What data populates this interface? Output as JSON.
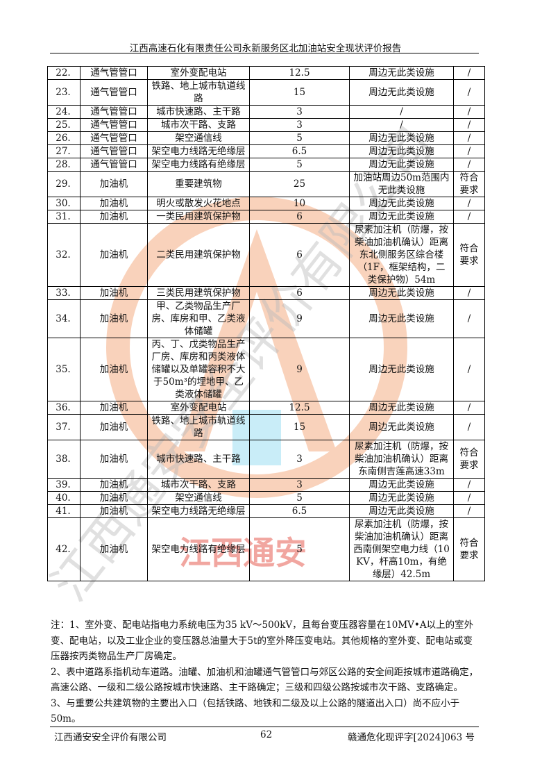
{
  "header": {
    "title": "江西高速石化有限责任公司永新服务区北加油站安全现状评价报告"
  },
  "watermark": {
    "text": "江西通安安全评价有限公司",
    "emphasis": "江西通安",
    "logo_letter": "A",
    "colors": {
      "ring": "#f4a77a",
      "red": "#e23b2e",
      "blue": "#4fc3e8"
    }
  },
  "table": {
    "rows": [
      {
        "no": "22.",
        "source": "通气管管口",
        "object": "室外变配电站",
        "distance": "12.5",
        "actual": "周边无此类设施",
        "result": "/"
      },
      {
        "no": "23.",
        "source": "通气管管口",
        "object": "铁路、地上城市轨道线路",
        "distance": "15",
        "actual": "周边无此类设施",
        "result": "/"
      },
      {
        "no": "24.",
        "source": "通气管管口",
        "object": "城市快速路、主干路",
        "distance": "3",
        "actual": "/",
        "result": "/"
      },
      {
        "no": "25.",
        "source": "通气管管口",
        "object": "城市次干路、支路",
        "distance": "3",
        "actual": "/",
        "result": "/"
      },
      {
        "no": "26.",
        "source": "通气管管口",
        "object": "架空通信线",
        "distance": "5",
        "actual": "周边无此类设施",
        "result": "/"
      },
      {
        "no": "27.",
        "source": "通气管管口",
        "object": "架空电力线路无绝缘层",
        "distance": "6.5",
        "actual": "周边无此类设施",
        "result": "/"
      },
      {
        "no": "28.",
        "source": "通气管管口",
        "object": "架空电力线路有绝缘层",
        "distance": "5",
        "actual": "周边无此类设施",
        "result": "/"
      },
      {
        "no": "29.",
        "source": "加油机",
        "object": "重要建筑物",
        "distance": "25",
        "actual": "加油站周边50m范围内无此类设施",
        "result": "符合要求"
      },
      {
        "no": "30.",
        "source": "加油机",
        "object": "明火或散发火花地点",
        "distance": "10",
        "actual": "周边无此类设施",
        "result": "/"
      },
      {
        "no": "31.",
        "source": "加油机",
        "object": "一类民用建筑保护物",
        "distance": "6",
        "actual": "周边无此类设施",
        "result": "/"
      },
      {
        "no": "32.",
        "source": "加油机",
        "object": "二类民用建筑保护物",
        "distance": "6",
        "actual": "尿素加注机（防爆，按柴油加油机确认）距离东北侧服务区综合楼（1F，框架结构，二类保护物）54m",
        "result": "符合要求"
      },
      {
        "no": "33.",
        "source": "加油机",
        "object": "三类民用建筑保护物",
        "distance": "6",
        "actual": "周边无此类设施",
        "result": "/"
      },
      {
        "no": "34.",
        "source": "加油机",
        "object": "甲、乙类物品生产厂房、库房和甲、乙类液体储罐",
        "distance": "9",
        "actual": "周边无此类设施",
        "result": "/"
      },
      {
        "no": "35.",
        "source": "加油机",
        "object": "丙、丁、戊类物品生产厂房、库房和丙类液体储罐以及单罐容积不大于50m³的埋地甲、乙类液体储罐",
        "distance": "9",
        "actual": "周边无此类设施",
        "result": "/"
      },
      {
        "no": "36.",
        "source": "加油机",
        "object": "室外变配电站",
        "distance": "12.5",
        "actual": "周边无此类设施",
        "result": "/"
      },
      {
        "no": "37.",
        "source": "加油机",
        "object": "铁路、地上城市轨道线路",
        "distance": "15",
        "actual": "周边无此类设施",
        "result": "/"
      },
      {
        "no": "38.",
        "source": "加油机",
        "object": "城市快速路、主干路",
        "distance": "3",
        "actual": "尿素加注机（防爆，按柴油加油机确认）距离东南侧吉莲高速33m",
        "result": "符合要求"
      },
      {
        "no": "39.",
        "source": "加油机",
        "object": "城市次干路、支路",
        "distance": "3",
        "actual": "周边无此类设施",
        "result": "/"
      },
      {
        "no": "40.",
        "source": "加油机",
        "object": "架空通信线",
        "distance": "5",
        "actual": "周边无此类设施",
        "result": "/"
      },
      {
        "no": "41.",
        "source": "加油机",
        "object": "架空电力线路无绝缘层",
        "distance": "6.5",
        "actual": "周边无此类设施",
        "result": "/"
      },
      {
        "no": "42.",
        "source": "加油机",
        "object": "架空电力线路有绝缘层",
        "distance": "5",
        "actual": "尿素加注机（防爆，按柴油加油机确认）距离西南侧架空电力线（10KV，杆高10m，有绝缘层）42.5m",
        "result": "符合要求"
      }
    ]
  },
  "notes": [
    "注：1、室外变、配电站指电力系统电压为35 kV～500kV，且每台变压器容量在10MV•A以上的室外变、配电站，以及工业企业的变压器总油量大于5t的室外降压变电站。其他规格的室外变、配电站或变压器按丙类物品生产厂房确定。",
    "2、表中道路系指机动车道路。油罐、加油机和油罐通气管管口与郊区公路的安全间距按城市道路确定，高速公路、一级和二级公路按城市快速路、主干路确定；三级和四级公路按城市次干路、支路确定。",
    "3、与重要公共建筑物的主要出入口（包括铁路、地铁和二级及以上公路的隧道出入口）尚不应小于50m。"
  ],
  "footer": {
    "company": "江西通安安全评价有限公司",
    "page": "62",
    "doc_no": "赣通危化现评字[2024]063 号"
  }
}
